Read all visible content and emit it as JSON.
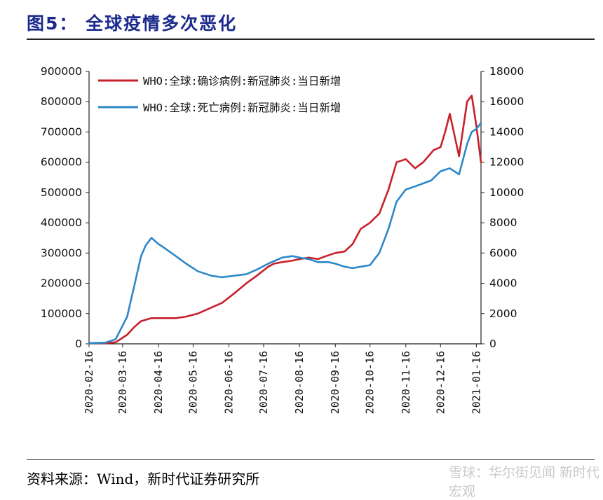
{
  "header": {
    "title": "图5： 全球疫情多次恶化"
  },
  "footer": {
    "source": "资料来源：Wind，新时代证券研究所",
    "watermark": "雪球：华尔街见闻 新时代宏观"
  },
  "colors": {
    "title": "#1b2a8c",
    "confirmed": "#c8202a",
    "deaths": "#2d88c8"
  },
  "chart_data": {
    "type": "line",
    "title": "",
    "x_type": "date",
    "x_ticks": [
      "2020-02-16",
      "2020-03-16",
      "2020-04-16",
      "2020-05-16",
      "2020-06-16",
      "2020-07-16",
      "2020-08-16",
      "2020-09-16",
      "2020-10-16",
      "2020-11-16",
      "2020-12-16",
      "2021-01-16"
    ],
    "x_range": [
      "2020-02-16",
      "2021-01-20"
    ],
    "y_left": {
      "range": [
        0,
        900000
      ],
      "ticks": [
        "0",
        "100000",
        "200000",
        "300000",
        "400000",
        "500000",
        "600000",
        "700000",
        "800000",
        "900000"
      ]
    },
    "y_right": {
      "range": [
        0,
        18000
      ],
      "ticks": [
        "0",
        "2000",
        "4000",
        "6000",
        "8000",
        "10000",
        "12000",
        "14000",
        "16000",
        "18000"
      ]
    },
    "legend": "top-left",
    "grid": false,
    "series": [
      {
        "name": "WHO:全球:确诊病例:新冠肺炎:当日新增",
        "axis": "left",
        "color": "#c8202a",
        "x": [
          "2020-02-16",
          "2020-03-01",
          "2020-03-10",
          "2020-03-20",
          "2020-03-26",
          "2020-04-01",
          "2020-04-10",
          "2020-04-20",
          "2020-05-01",
          "2020-05-10",
          "2020-05-20",
          "2020-06-01",
          "2020-06-10",
          "2020-06-20",
          "2020-07-01",
          "2020-07-10",
          "2020-07-20",
          "2020-07-25",
          "2020-08-01",
          "2020-08-10",
          "2020-08-16",
          "2020-08-24",
          "2020-09-01",
          "2020-09-08",
          "2020-09-16",
          "2020-09-24",
          "2020-10-01",
          "2020-10-08",
          "2020-10-16",
          "2020-10-24",
          "2020-11-01",
          "2020-11-08",
          "2020-11-16",
          "2020-11-24",
          "2020-12-01",
          "2020-12-10",
          "2020-12-16",
          "2020-12-20",
          "2020-12-24",
          "2021-01-01",
          "2021-01-08",
          "2021-01-12",
          "2021-01-16",
          "2021-01-20"
        ],
        "values": [
          2000,
          2000,
          5000,
          30000,
          55000,
          75000,
          85000,
          85000,
          85000,
          90000,
          100000,
          120000,
          135000,
          165000,
          200000,
          225000,
          255000,
          265000,
          270000,
          275000,
          280000,
          285000,
          280000,
          290000,
          300000,
          305000,
          330000,
          380000,
          400000,
          430000,
          510000,
          600000,
          610000,
          580000,
          600000,
          640000,
          650000,
          700000,
          760000,
          620000,
          800000,
          820000,
          720000,
          600000
        ]
      },
      {
        "name": "WHO:全球:死亡病例:新冠肺炎:当日新增",
        "axis": "right",
        "color": "#2d88c8",
        "x": [
          "2020-02-16",
          "2020-03-01",
          "2020-03-10",
          "2020-03-20",
          "2020-03-26",
          "2020-04-01",
          "2020-04-05",
          "2020-04-10",
          "2020-04-16",
          "2020-04-20",
          "2020-05-01",
          "2020-05-10",
          "2020-05-20",
          "2020-06-01",
          "2020-06-10",
          "2020-06-20",
          "2020-07-01",
          "2020-07-10",
          "2020-07-20",
          "2020-08-01",
          "2020-08-10",
          "2020-08-16",
          "2020-08-24",
          "2020-09-01",
          "2020-09-10",
          "2020-09-16",
          "2020-09-24",
          "2020-10-01",
          "2020-10-08",
          "2020-10-16",
          "2020-10-24",
          "2020-11-01",
          "2020-11-08",
          "2020-11-16",
          "2020-11-24",
          "2020-12-01",
          "2020-12-08",
          "2020-12-16",
          "2020-12-24",
          "2021-01-01",
          "2021-01-08",
          "2021-01-12",
          "2021-01-16",
          "2021-01-20"
        ],
        "values": [
          50,
          80,
          300,
          1800,
          3800,
          5800,
          6500,
          7000,
          6600,
          6400,
          5800,
          5300,
          4800,
          4500,
          4400,
          4500,
          4600,
          4900,
          5300,
          5700,
          5800,
          5700,
          5600,
          5400,
          5400,
          5300,
          5100,
          5000,
          5100,
          5200,
          6000,
          7600,
          9400,
          10200,
          10400,
          10600,
          10800,
          11400,
          11600,
          11200,
          13200,
          14000,
          14200,
          14600
        ]
      }
    ]
  }
}
